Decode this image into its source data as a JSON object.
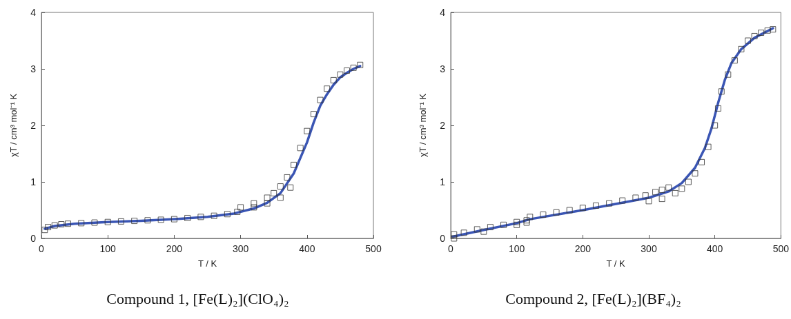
{
  "chart_data": [
    {
      "type": "scatter",
      "title": "Compound 1, [Fe(L)₂](ClO₄)₂",
      "xlabel": "T / K",
      "ylabel": "χT / cm³ mol⁻¹ K",
      "xlim": [
        0,
        500
      ],
      "xticks": [
        0,
        100,
        200,
        300,
        400,
        500
      ],
      "ylim": [
        0,
        4
      ],
      "yticks": [
        0,
        1,
        2,
        3,
        4
      ],
      "grid": false,
      "marker": "square",
      "series": [
        {
          "color": "#333333",
          "x": [
            5,
            10,
            20,
            30,
            40,
            60,
            80,
            100,
            120,
            140,
            160,
            180,
            200,
            220,
            240,
            260,
            280,
            295,
            300,
            320,
            340,
            350,
            360,
            370,
            380,
            390,
            400,
            410,
            420,
            430,
            440,
            450,
            460,
            470,
            480,
            320,
            340,
            360,
            375
          ],
          "values": [
            0.15,
            0.2,
            0.23,
            0.25,
            0.26,
            0.27,
            0.28,
            0.29,
            0.3,
            0.31,
            0.32,
            0.33,
            0.34,
            0.36,
            0.38,
            0.4,
            0.43,
            0.47,
            0.55,
            0.62,
            0.72,
            0.8,
            0.92,
            1.08,
            1.3,
            1.6,
            1.9,
            2.2,
            2.45,
            2.65,
            2.8,
            2.9,
            2.97,
            3.02,
            3.07,
            0.55,
            0.62,
            0.72,
            0.9
          ]
        },
        {
          "type": "line",
          "color": "#3a55b4",
          "marker": "none",
          "line_style": "solid",
          "x": [
            5,
            20,
            50,
            100,
            150,
            200,
            250,
            290,
            320,
            340,
            360,
            380,
            400,
            410,
            420,
            430,
            440,
            450,
            460,
            470,
            480
          ],
          "values": [
            0.17,
            0.22,
            0.26,
            0.29,
            0.31,
            0.34,
            0.38,
            0.44,
            0.53,
            0.63,
            0.8,
            1.15,
            1.7,
            2.05,
            2.35,
            2.55,
            2.72,
            2.85,
            2.93,
            3.0,
            3.05
          ]
        }
      ]
    },
    {
      "type": "scatter",
      "title": "Compound 2, [Fe(L)₂](BF₄)₂",
      "xlabel": "T / K",
      "ylabel": "χT / cm³ mol⁻¹ K",
      "xlim": [
        0,
        500
      ],
      "xticks": [
        0,
        100,
        200,
        300,
        400,
        500
      ],
      "ylim": [
        0,
        4
      ],
      "yticks": [
        0,
        1,
        2,
        3,
        4
      ],
      "grid": false,
      "marker": "square",
      "series": [
        {
          "color": "#333333",
          "x": [
            5,
            20,
            40,
            60,
            80,
            100,
            115,
            120,
            140,
            160,
            180,
            200,
            220,
            240,
            260,
            280,
            295,
            310,
            320,
            330,
            300,
            320,
            340,
            350,
            360,
            370,
            380,
            390,
            400,
            405,
            410,
            420,
            430,
            440,
            450,
            460,
            470,
            480,
            488,
            5,
            50,
            100,
            115
          ],
          "values": [
            0.07,
            0.1,
            0.16,
            0.2,
            0.24,
            0.29,
            0.32,
            0.38,
            0.42,
            0.46,
            0.5,
            0.54,
            0.58,
            0.62,
            0.67,
            0.72,
            0.76,
            0.82,
            0.86,
            0.9,
            0.66,
            0.7,
            0.8,
            0.88,
            1.0,
            1.15,
            1.35,
            1.62,
            2.0,
            2.3,
            2.6,
            2.9,
            3.15,
            3.35,
            3.5,
            3.58,
            3.64,
            3.68,
            3.7,
            0.0,
            0.12,
            0.24,
            0.28
          ]
        },
        {
          "type": "line",
          "color": "#3a55b4",
          "marker": "none",
          "line_style": "solid",
          "x": [
            3,
            50,
            100,
            120,
            200,
            300,
            330,
            350,
            370,
            385,
            395,
            405,
            415,
            425,
            440,
            460,
            488
          ],
          "values": [
            0.03,
            0.15,
            0.27,
            0.34,
            0.5,
            0.72,
            0.83,
            0.98,
            1.25,
            1.6,
            1.95,
            2.4,
            2.8,
            3.1,
            3.35,
            3.55,
            3.72
          ]
        }
      ]
    }
  ]
}
